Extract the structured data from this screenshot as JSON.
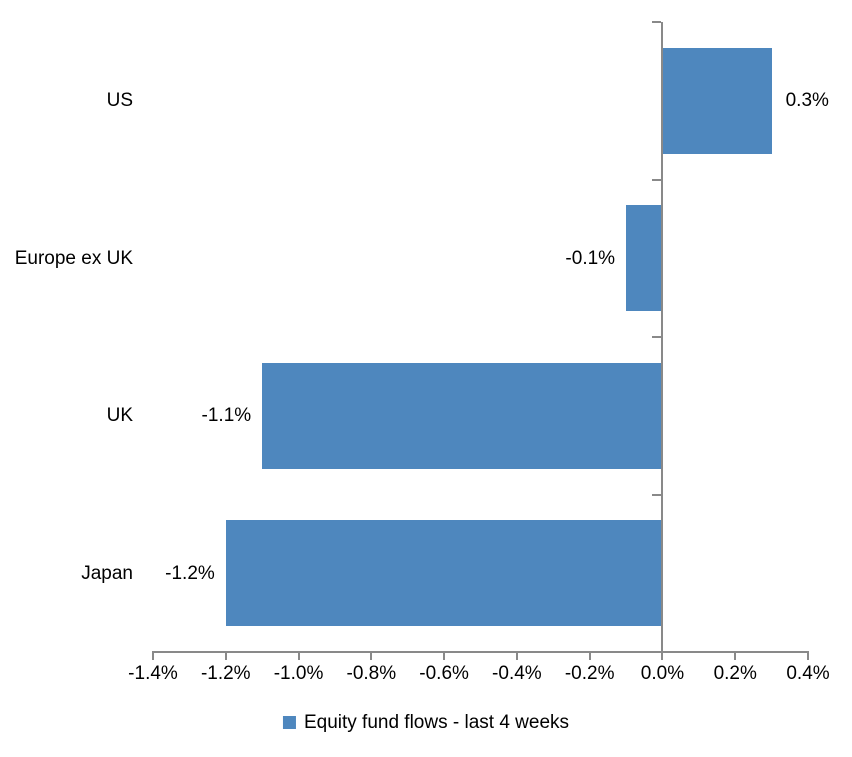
{
  "chart_data": {
    "type": "bar",
    "orientation": "horizontal",
    "title": "",
    "xlabel": "",
    "ylabel": "",
    "categories": [
      "US",
      "Europe ex UK",
      "UK",
      "Japan"
    ],
    "series": [
      {
        "name": "Equity fund flows - last 4 weeks",
        "values": [
          0.3,
          -0.1,
          -1.1,
          -1.2
        ],
        "data_labels": [
          "0.3%",
          "-0.1%",
          "-1.1%",
          "-1.2%"
        ]
      }
    ],
    "value_unit": "%",
    "xlim": [
      -1.4,
      0.4
    ],
    "x_tick_step": 0.2,
    "x_tick_labels": [
      "-1.4%",
      "-1.2%",
      "-1.0%",
      "-0.8%",
      "-0.6%",
      "-0.4%",
      "-0.2%",
      "0.0%",
      "0.2%",
      "0.4%"
    ],
    "grid": false,
    "legend_position": "bottom",
    "series_name": "Equity fund flows - last 4 weeks",
    "bar_color": "#4e87be",
    "axis_color": "#898989",
    "text_color": "#000000",
    "background_color": "#ffffff"
  }
}
